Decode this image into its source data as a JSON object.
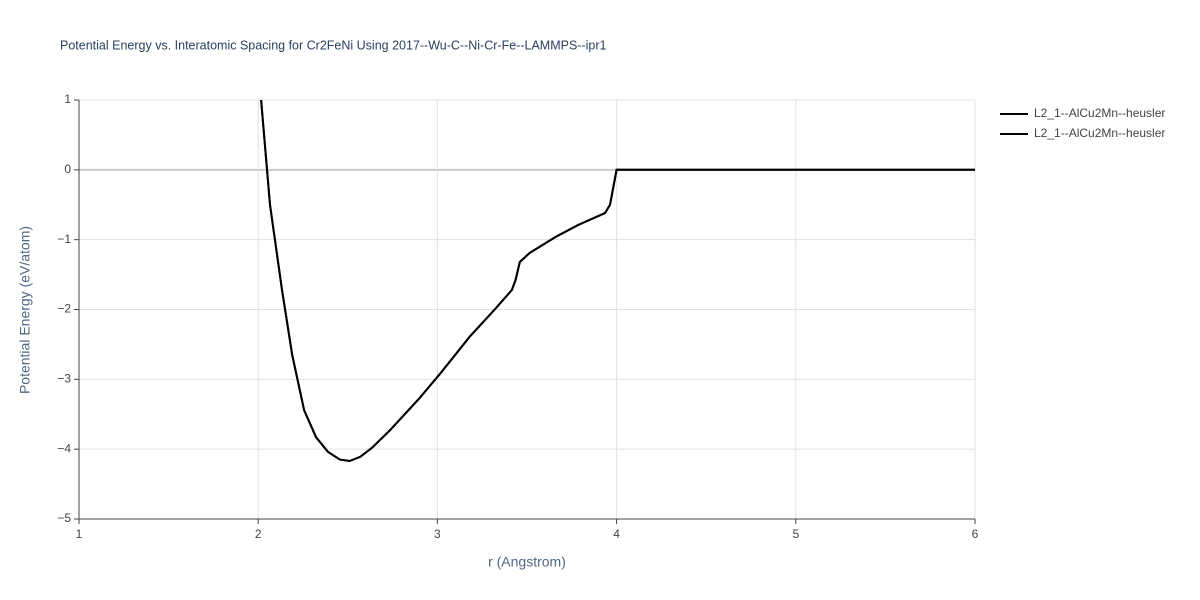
{
  "chart_data": {
    "type": "line",
    "title": "Potential Energy vs. Interatomic Spacing for Cr2FeNi Using 2017--Wu-C--Ni-Cr-Fe--LAMMPS--ipr1",
    "x_label": "r (Angstrom)",
    "y_label": "Potential Energy (eV/atom)",
    "x": [
      2.016,
      2.066,
      2.133,
      2.19,
      2.256,
      2.323,
      2.39,
      2.456,
      2.51,
      2.57,
      2.635,
      2.735,
      2.9,
      3.015,
      3.18,
      3.32,
      3.416,
      3.436,
      3.46,
      3.515,
      3.66,
      3.785,
      3.935,
      3.963,
      4.0,
      4.5,
      5.0,
      5.5,
      6.0
    ],
    "series": [
      {
        "name": "L2_1--AlCu2Mn--heusler",
        "color": "#000000",
        "values": [
          1.0,
          -0.5,
          -1.72,
          -2.65,
          -3.44,
          -3.83,
          -4.04,
          -4.15,
          -4.17,
          -4.11,
          -3.98,
          -3.73,
          -3.27,
          -2.92,
          -2.39,
          -2.0,
          -1.72,
          -1.58,
          -1.32,
          -1.19,
          -0.96,
          -0.79,
          -0.62,
          -0.5,
          0,
          0,
          0,
          0,
          0
        ]
      },
      {
        "name": "L2_1--AlCu2Mn--heusler",
        "color": "#000000",
        "values": [
          1.0,
          -0.5,
          -1.72,
          -2.65,
          -3.44,
          -3.83,
          -4.04,
          -4.15,
          -4.17,
          -4.11,
          -3.98,
          -3.73,
          -3.27,
          -2.92,
          -2.39,
          -2.0,
          -1.72,
          -1.58,
          -1.32,
          -1.19,
          -0.96,
          -0.79,
          -0.62,
          -0.5,
          0,
          0,
          0,
          0,
          0
        ]
      }
    ],
    "xlim": [
      1,
      6
    ],
    "xticks": [
      1,
      2,
      3,
      4,
      5,
      6
    ],
    "ylim": [
      -5,
      1
    ],
    "yticks": [
      {
        "value": -5,
        "label": "−5"
      },
      {
        "value": -4,
        "label": "−4"
      },
      {
        "value": -3,
        "label": "−3"
      },
      {
        "value": -2,
        "label": "−2"
      },
      {
        "value": -1,
        "label": "−1"
      },
      0,
      1
    ],
    "grid": true
  }
}
